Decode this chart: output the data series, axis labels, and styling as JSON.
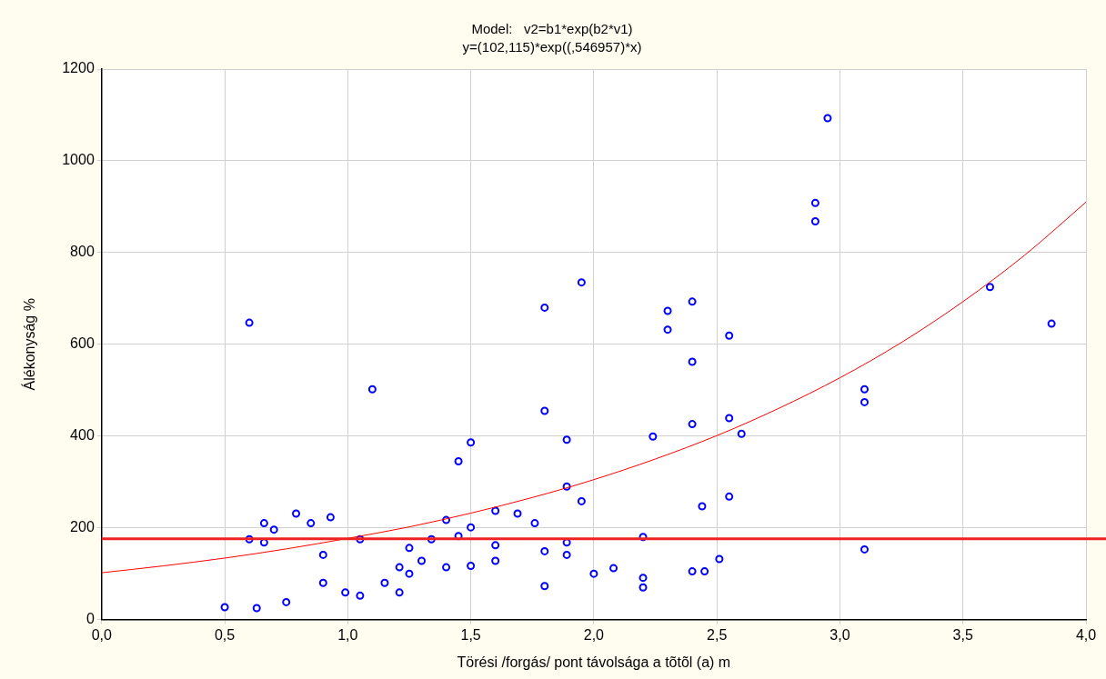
{
  "chart_data": {
    "type": "scatter",
    "title": "Model:   v2=b1*exp(b2*v1)",
    "subtitle": "y=(102,115)*exp((,546957)*x)",
    "xlabel": "Törési /forgás/ pont távolsága a tõtõl (a) m",
    "ylabel": "Álékonyság %",
    "xlim": [
      0,
      4
    ],
    "xticks": [
      {
        "value": 0,
        "label": "0,0"
      },
      {
        "value": 0.5,
        "label": "0,5"
      },
      {
        "value": 1,
        "label": "1,0"
      },
      {
        "value": 1.5,
        "label": "1,5"
      },
      {
        "value": 2,
        "label": "2,0"
      },
      {
        "value": 2.5,
        "label": "2,5"
      },
      {
        "value": 3,
        "label": "3,0"
      },
      {
        "value": 3.5,
        "label": "3,5"
      },
      {
        "value": 4,
        "label": "4,0"
      }
    ],
    "ylim": [
      0,
      1200
    ],
    "yticks": [
      0,
      200,
      400,
      600,
      800,
      1000,
      1200
    ],
    "grid": true,
    "legend": false,
    "marker": "circle",
    "series": [
      {
        "type": "scatter",
        "color": "#0000ff",
        "x": [
          0.5,
          0.63,
          0.75,
          0.6,
          0.6,
          0.66,
          0.66,
          0.7,
          0.79,
          0.85,
          0.93,
          0.9,
          0.9,
          0.99,
          1.05,
          1.05,
          1.1,
          1.15,
          1.21,
          1.21,
          1.25,
          1.25,
          1.3,
          1.34,
          1.4,
          1.4,
          1.45,
          1.45,
          1.5,
          1.5,
          1.5,
          1.6,
          1.6,
          1.6,
          1.69,
          1.76,
          1.8,
          1.8,
          1.8,
          1.8,
          1.89,
          1.89,
          1.89,
          1.89,
          1.95,
          1.95,
          2.0,
          2.08,
          2.2,
          2.2,
          2.2,
          2.24,
          2.3,
          2.3,
          2.4,
          2.4,
          2.4,
          2.4,
          2.45,
          2.44,
          2.51,
          2.55,
          2.55,
          2.55,
          2.6,
          2.9,
          2.9,
          2.95,
          3.1,
          3.1,
          3.1,
          3.61,
          3.86
        ],
        "values": [
          27,
          25,
          38,
          175,
          647,
          210,
          168,
          196,
          231,
          210,
          223,
          141,
          80,
          59,
          52,
          175,
          502,
          80,
          114,
          59,
          156,
          100,
          128,
          175,
          217,
          114,
          345,
          182,
          386,
          201,
          117,
          237,
          162,
          128,
          231,
          210,
          680,
          455,
          149,
          73,
          392,
          290,
          168,
          141,
          258,
          735,
          100,
          112,
          180,
          91,
          70,
          399,
          673,
          632,
          693,
          562,
          426,
          105,
          105,
          247,
          132,
          619,
          439,
          268,
          405,
          908,
          868,
          1093,
          502,
          474,
          153,
          725,
          645
        ]
      },
      {
        "type": "line",
        "color": "#ff0000",
        "marker": "none",
        "x": [
          0,
          0.25,
          0.5,
          0.75,
          1,
          1.25,
          1.5,
          1.75,
          2,
          2.25,
          2.5,
          2.75,
          3,
          3.25,
          3.5,
          3.75,
          4
        ],
        "values": [
          102,
          117,
          134,
          154,
          177,
          202,
          232,
          266,
          305,
          350,
          401,
          460,
          527,
          604,
          693,
          794,
          910
        ]
      }
    ],
    "ref_lines": [
      {
        "axis": "y",
        "value": 176,
        "color": "#ee2222"
      }
    ]
  }
}
